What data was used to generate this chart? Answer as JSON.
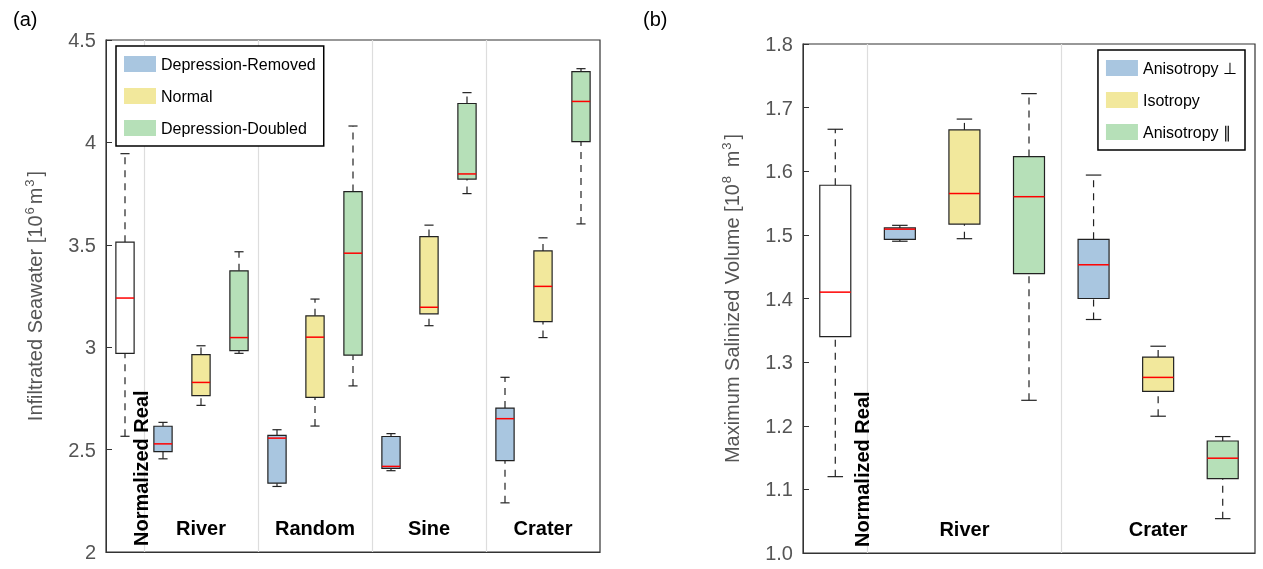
{
  "chart_data": [
    {
      "type": "box",
      "title": "(a)",
      "ylabel": "Infiltrated Seawater [10$^{6}$m$^{3}$]",
      "categories": [
        "Normalized Real",
        "River",
        "Random",
        "Sine",
        "Crater"
      ],
      "ylim": [
        2,
        4.5
      ],
      "yticks": [
        2,
        2.5,
        3,
        3.5,
        4,
        4.5
      ],
      "grid": "x",
      "legend": "top left",
      "series": [
        {
          "color": "#ffffff",
          "boxes": [
            {
              "low": 2.565,
              "q1": 2.97,
              "median": 3.24,
              "q3": 3.513,
              "high": 3.945
            },
            null,
            null,
            null,
            null
          ]
        },
        {
          "name": "Depression-Removed",
          "color": "#a9c6e0",
          "boxes": [
            null,
            {
              "low": 2.455,
              "q1": 2.49,
              "median": 2.528,
              "q3": 2.614,
              "high": 2.633
            },
            {
              "low": 2.32,
              "q1": 2.336,
              "median": 2.556,
              "q3": 2.569,
              "high": 2.597
            },
            {
              "low": 2.397,
              "q1": 2.408,
              "median": 2.418,
              "q3": 2.564,
              "high": 2.578
            },
            {
              "low": 2.24,
              "q1": 2.446,
              "median": 2.651,
              "q3": 2.703,
              "high": 2.853
            }
          ]
        },
        {
          "name": "Normal",
          "color": "#f2e89c",
          "boxes": [
            null,
            {
              "low": 2.716,
              "q1": 2.764,
              "median": 2.828,
              "q3": 2.964,
              "high": 3.007
            },
            {
              "low": 2.615,
              "q1": 2.755,
              "median": 3.049,
              "q3": 3.153,
              "high": 3.235
            },
            {
              "low": 3.105,
              "q1": 3.163,
              "median": 3.195,
              "q3": 3.54,
              "high": 3.596
            },
            {
              "low": 3.047,
              "q1": 3.125,
              "median": 3.297,
              "q3": 3.47,
              "high": 3.534
            }
          ]
        },
        {
          "name": "Depression-Doubled",
          "color": "#b6e0b8",
          "boxes": [
            null,
            {
              "low": 2.97,
              "q1": 2.983,
              "median": 3.047,
              "q3": 3.373,
              "high": 3.466
            },
            {
              "low": 2.811,
              "q1": 2.961,
              "median": 3.459,
              "q3": 3.76,
              "high": 4.08
            },
            {
              "low": 3.75,
              "q1": 3.821,
              "median": 3.846,
              "q3": 4.19,
              "high": 4.243
            },
            {
              "low": 3.602,
              "q1": 4.004,
              "median": 4.2,
              "q3": 4.346,
              "high": 4.36
            }
          ]
        }
      ]
    },
    {
      "type": "box",
      "title": "(b)",
      "ylabel": "Maximum Salinized Volume [10$^{8}$ m$^{3}$]",
      "categories": [
        "Normalized Real",
        "River",
        "Crater"
      ],
      "ylim": [
        1,
        1.8
      ],
      "yticks": [
        {
          "value": 1,
          "label": "1.0"
        },
        1.1,
        1.2,
        1.3,
        1.4,
        1.5,
        1.6,
        1.7,
        1.8
      ],
      "grid": "x",
      "legend": "top right",
      "series": [
        {
          "color": "#ffffff",
          "boxes": [
            {
              "low": 1.12,
              "q1": 1.34,
              "median": 1.41,
              "q3": 1.578,
              "high": 1.666
            },
            null,
            null
          ]
        },
        {
          "name": "Anisotropy ⊥",
          "color": "#a9c6e0",
          "boxes": [
            null,
            {
              "low": 1.49,
              "q1": 1.493,
              "median": 1.509,
              "q3": 1.511,
              "high": 1.515
            },
            {
              "low": 1.367,
              "q1": 1.4,
              "median": 1.453,
              "q3": 1.493,
              "high": 1.594
            }
          ]
        },
        {
          "name": "Isotropy",
          "color": "#f2e89c",
          "boxes": [
            null,
            {
              "low": 1.494,
              "q1": 1.517,
              "median": 1.565,
              "q3": 1.665,
              "high": 1.682
            },
            {
              "low": 1.215,
              "q1": 1.254,
              "median": 1.276,
              "q3": 1.308,
              "high": 1.325
            }
          ]
        },
        {
          "name": "Anisotropy ∥",
          "color": "#b6e0b8",
          "boxes": [
            null,
            {
              "low": 1.24,
              "q1": 1.439,
              "median": 1.56,
              "q3": 1.623,
              "high": 1.722
            },
            {
              "low": 1.054,
              "q1": 1.117,
              "median": 1.149,
              "q3": 1.176,
              "high": 1.183
            }
          ]
        }
      ]
    }
  ]
}
